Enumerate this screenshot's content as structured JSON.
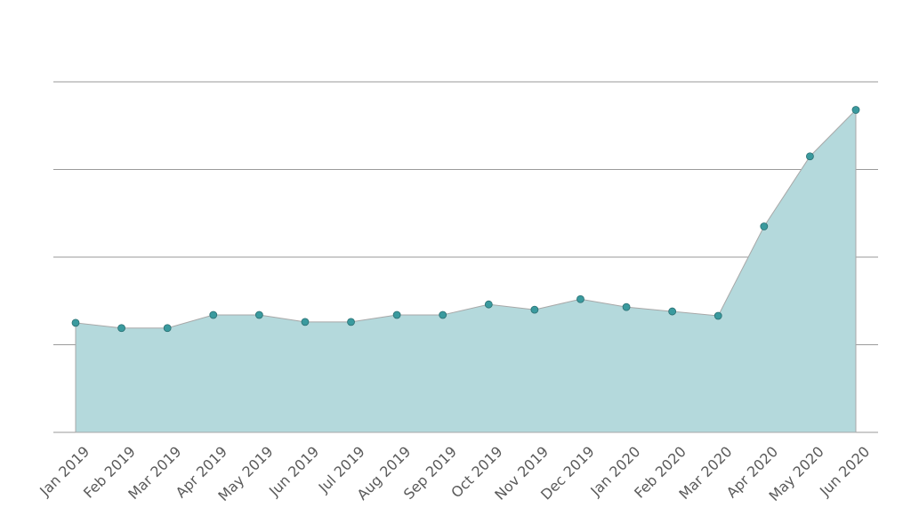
{
  "chart_data": {
    "type": "area",
    "categories": [
      "Jan 2019",
      "Feb 2019",
      "Mar 2019",
      "Apr 2019",
      "May 2019",
      "Jun 2019",
      "Jul 2019",
      "Aug 2019",
      "Sep 2019",
      "Oct 2019",
      "Nov 2019",
      "Dec 2019",
      "Jan 2020",
      "Feb 2020",
      "Mar 2020",
      "Apr 2020",
      "May 2020",
      "Jun 2020"
    ],
    "series": [
      {
        "values": [
          1.25,
          1.19,
          1.19,
          1.34,
          1.34,
          1.26,
          1.26,
          1.34,
          1.34,
          1.46,
          1.4,
          1.52,
          1.43,
          1.38,
          1.33,
          2.35,
          3.15,
          3.68
        ]
      }
    ],
    "ylim": [
      0,
      4
    ],
    "y_gridlines": [
      0,
      1,
      2,
      3,
      4
    ],
    "grid": true,
    "markers": true,
    "colors": {
      "fill": "#b4d9dc",
      "marker": "#3a9a9e",
      "outline": "#a8a8a8",
      "grid": "#9a9a9a"
    }
  }
}
